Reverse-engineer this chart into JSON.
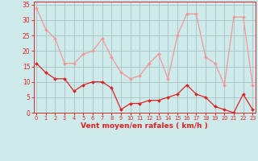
{
  "x": [
    0,
    1,
    2,
    3,
    4,
    5,
    6,
    7,
    8,
    9,
    10,
    11,
    12,
    13,
    14,
    15,
    16,
    17,
    18,
    19,
    20,
    21,
    22,
    23
  ],
  "wind_avg": [
    16,
    13,
    11,
    11,
    7,
    9,
    10,
    10,
    8,
    1,
    3,
    3,
    4,
    4,
    5,
    6,
    9,
    6,
    5,
    2,
    1,
    0,
    6,
    1
  ],
  "wind_gust": [
    34,
    27,
    24,
    16,
    16,
    19,
    20,
    24,
    18,
    13,
    11,
    12,
    16,
    19,
    11,
    25,
    32,
    32,
    18,
    16,
    9,
    31,
    31,
    9
  ],
  "background_color": "#ceeaea",
  "grid_color": "#aac8c8",
  "avg_color": "#dd2222",
  "gust_color": "#f09898",
  "xlabel": "Vent moyen/en rafales ( km/h )",
  "xlabel_color": "#dd2222",
  "tick_color": "#dd2222",
  "yticks": [
    0,
    5,
    10,
    15,
    20,
    25,
    30,
    35
  ],
  "ylim": [
    0,
    36
  ],
  "xlim": [
    -0.3,
    23.3
  ]
}
